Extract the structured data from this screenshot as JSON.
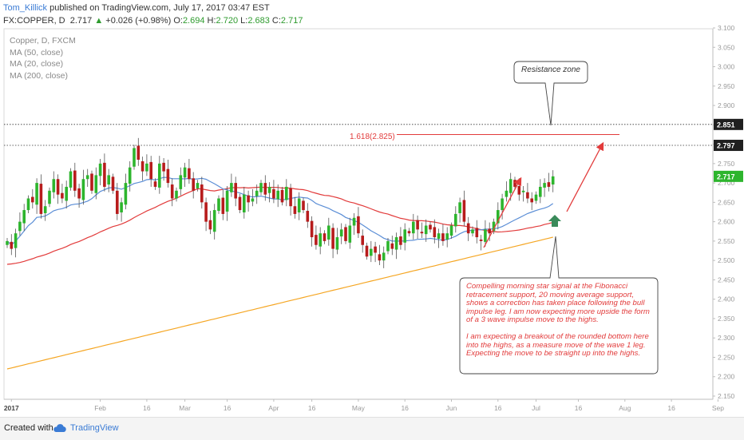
{
  "header": {
    "author": "Tom_Killick",
    "published": "published on TradingView.com, July 17, 2017 03:47 EST",
    "symbol": "FX:COPPER, D",
    "price": "2.717",
    "change": "+0.026 (+0.98%)",
    "ohlc_o_label": "O:",
    "ohlc_o": "2.694",
    "ohlc_h_label": "H:",
    "ohlc_h": "2.720",
    "ohlc_l_label": "L:",
    "ohlc_l": "2.683",
    "ohlc_c_label": "C:",
    "ohlc_c": "2.717"
  },
  "legend": {
    "title": "Copper, D, FXCM",
    "ma50": "MA (50, close)",
    "ma20": "MA (20, close)",
    "ma200": "MA (200, close)"
  },
  "annotations": {
    "resistance": "Resistance zone",
    "fib": "1.618(2.825)",
    "note_p1": "Compelling morning star signal at the Fibonacci retracement support, 20 moving average support, shows a correction has taken place following the bull impulse leg. I am now expecting more upside the form of a 3 wave impulse move to the highs.",
    "note_p2": "I am expecting a breakout of the rounded bottom here into the highs, as a measure move of the wave 1 leg. Expecting the move to be straight up into the highs."
  },
  "footer": {
    "made": "Created with",
    "brand": "TradingView"
  },
  "colors": {
    "up": "#2db52d",
    "down": "#b71c1c",
    "ma20": "#5b8ed6",
    "ma50": "#e23b3b",
    "ma200": "#f5a623",
    "hline": "#333333",
    "accent": "#e23b3b"
  },
  "chart_data": {
    "type": "candlestick",
    "title": "Copper, D, FXCM",
    "ylim": [
      2.15,
      3.1
    ],
    "y_ticks": [
      "3.100",
      "3.050",
      "3.000",
      "2.950",
      "2.900",
      "2.850",
      "2.800",
      "2.750",
      "2.700",
      "2.650",
      "2.600",
      "2.550",
      "2.500",
      "2.450",
      "2.400",
      "2.350",
      "2.300",
      "2.250",
      "2.200",
      "2.150"
    ],
    "price_labels": [
      {
        "value": 2.851,
        "label": "2.851",
        "style": "dark"
      },
      {
        "value": 2.797,
        "label": "2.797",
        "style": "dark"
      },
      {
        "value": 2.717,
        "label": "2.717",
        "style": "green"
      }
    ],
    "x_ticks": [
      {
        "label": "2017",
        "bar": 1,
        "bold": true
      },
      {
        "label": "Feb",
        "bar": 22
      },
      {
        "label": "16",
        "bar": 33
      },
      {
        "label": "Mar",
        "bar": 42
      },
      {
        "label": "16",
        "bar": 52
      },
      {
        "label": "Apr",
        "bar": 63
      },
      {
        "label": "16",
        "bar": 72
      },
      {
        "label": "May",
        "bar": 83
      },
      {
        "label": "16",
        "bar": 94
      },
      {
        "label": "Jun",
        "bar": 105
      },
      {
        "label": "16",
        "bar": 116
      },
      {
        "label": "Jul",
        "bar": 125
      },
      {
        "label": "16",
        "bar": 135
      },
      {
        "label": "Aug",
        "bar": 146
      },
      {
        "label": "16",
        "bar": 157
      },
      {
        "label": "Sep",
        "bar": 168
      }
    ],
    "horizontal_lines": [
      2.851,
      2.797
    ],
    "fib_level": 2.825,
    "close": [
      2.55,
      2.53,
      2.57,
      2.6,
      2.63,
      2.66,
      2.65,
      2.7,
      2.62,
      2.64,
      2.68,
      2.71,
      2.67,
      2.66,
      2.69,
      2.73,
      2.68,
      2.66,
      2.71,
      2.72,
      2.68,
      2.72,
      2.75,
      2.69,
      2.72,
      2.68,
      2.62,
      2.65,
      2.7,
      2.74,
      2.79,
      2.76,
      2.73,
      2.75,
      2.71,
      2.69,
      2.75,
      2.73,
      2.7,
      2.66,
      2.68,
      2.72,
      2.74,
      2.71,
      2.68,
      2.7,
      2.65,
      2.6,
      2.58,
      2.63,
      2.66,
      2.62,
      2.68,
      2.7,
      2.66,
      2.63,
      2.67,
      2.65,
      2.66,
      2.68,
      2.7,
      2.67,
      2.69,
      2.66,
      2.68,
      2.65,
      2.69,
      2.64,
      2.62,
      2.66,
      2.63,
      2.6,
      2.56,
      2.54,
      2.57,
      2.55,
      2.59,
      2.53,
      2.56,
      2.58,
      2.55,
      2.59,
      2.61,
      2.57,
      2.54,
      2.51,
      2.53,
      2.52,
      2.5,
      2.52,
      2.55,
      2.53,
      2.56,
      2.54,
      2.58,
      2.57,
      2.6,
      2.58,
      2.57,
      2.59,
      2.58,
      2.56,
      2.57,
      2.55,
      2.57,
      2.59,
      2.62,
      2.65,
      2.6,
      2.57,
      2.58,
      2.56,
      2.55,
      2.58,
      2.57,
      2.6,
      2.63,
      2.66,
      2.68,
      2.71,
      2.69,
      2.67,
      2.68,
      2.66,
      2.65,
      2.67,
      2.69,
      2.7,
      2.69,
      2.717
    ]
  }
}
